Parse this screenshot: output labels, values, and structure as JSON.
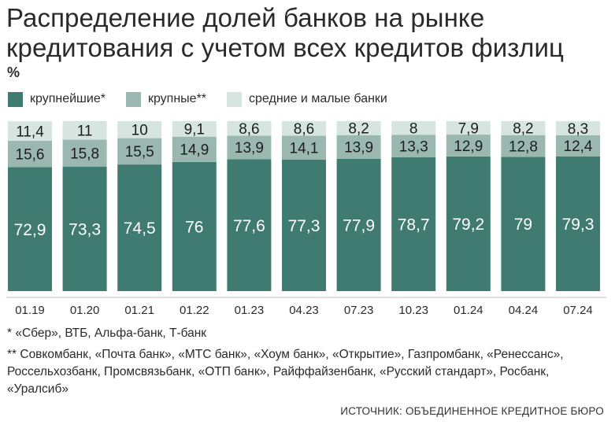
{
  "title": "Распределение долей банков на рынке кредитования с учетом всех кредитов физлиц",
  "unit": "%",
  "legend": [
    {
      "label": "крупнейшие*",
      "color": "#3f7b70"
    },
    {
      "label": "крупные**",
      "color": "#9ab8b0"
    },
    {
      "label": "средние и малые банки",
      "color": "#d7e5e0"
    }
  ],
  "chart_data": {
    "type": "bar",
    "stacked": true,
    "categories": [
      "01.19",
      "01.20",
      "01.21",
      "01.22",
      "01.23",
      "04.23",
      "07.23",
      "10.23",
      "01.24",
      "04.24",
      "07.24"
    ],
    "series": [
      {
        "name": "крупнейшие*",
        "values": [
          72.9,
          73.3,
          74.5,
          76,
          77.6,
          77.3,
          77.9,
          78.7,
          79.2,
          79,
          79.3
        ],
        "labels": [
          "72,9",
          "73,3",
          "74,5",
          "76",
          "77,6",
          "77,3",
          "77,9",
          "78,7",
          "79,2",
          "79",
          "79,3"
        ]
      },
      {
        "name": "крупные**",
        "values": [
          15.6,
          15.8,
          15.5,
          14.9,
          13.9,
          14.1,
          13.9,
          13.3,
          12.9,
          12.8,
          12.4
        ],
        "labels": [
          "15,6",
          "15,8",
          "15,5",
          "14,9",
          "13,9",
          "14,1",
          "13,9",
          "13,3",
          "12,9",
          "12,8",
          "12,4"
        ]
      },
      {
        "name": "средние и малые банки",
        "values": [
          11.4,
          11,
          10,
          9.1,
          8.6,
          8.6,
          8.2,
          8,
          7.9,
          8.2,
          8.3
        ],
        "labels": [
          "11,4",
          "11",
          "10",
          "9,1",
          "8,6",
          "8,6",
          "8,2",
          "8",
          "7,9",
          "8,2",
          "8,3"
        ]
      }
    ],
    "ylim": [
      0,
      100
    ],
    "grid": false,
    "legend_position": "top-left"
  },
  "footnotes": {
    "note1": "* «Сбер», ВТБ, Альфа-банк, Т-банк",
    "note2": "** Совкомбанк, «Почта банк», «МТС банк», «Хоум банк», «Открытие», Газпромбанк, «Ренессанс», Россельхозбанк, Промсвязьбанк, «ОТП банк», Райффайзенбанк, «Русский стандарт», Росбанк, «Уралсиб»"
  },
  "source": "ИСТОЧНИК: ОБЪЕДИНЕННОЕ КРЕДИТНОЕ БЮРО"
}
